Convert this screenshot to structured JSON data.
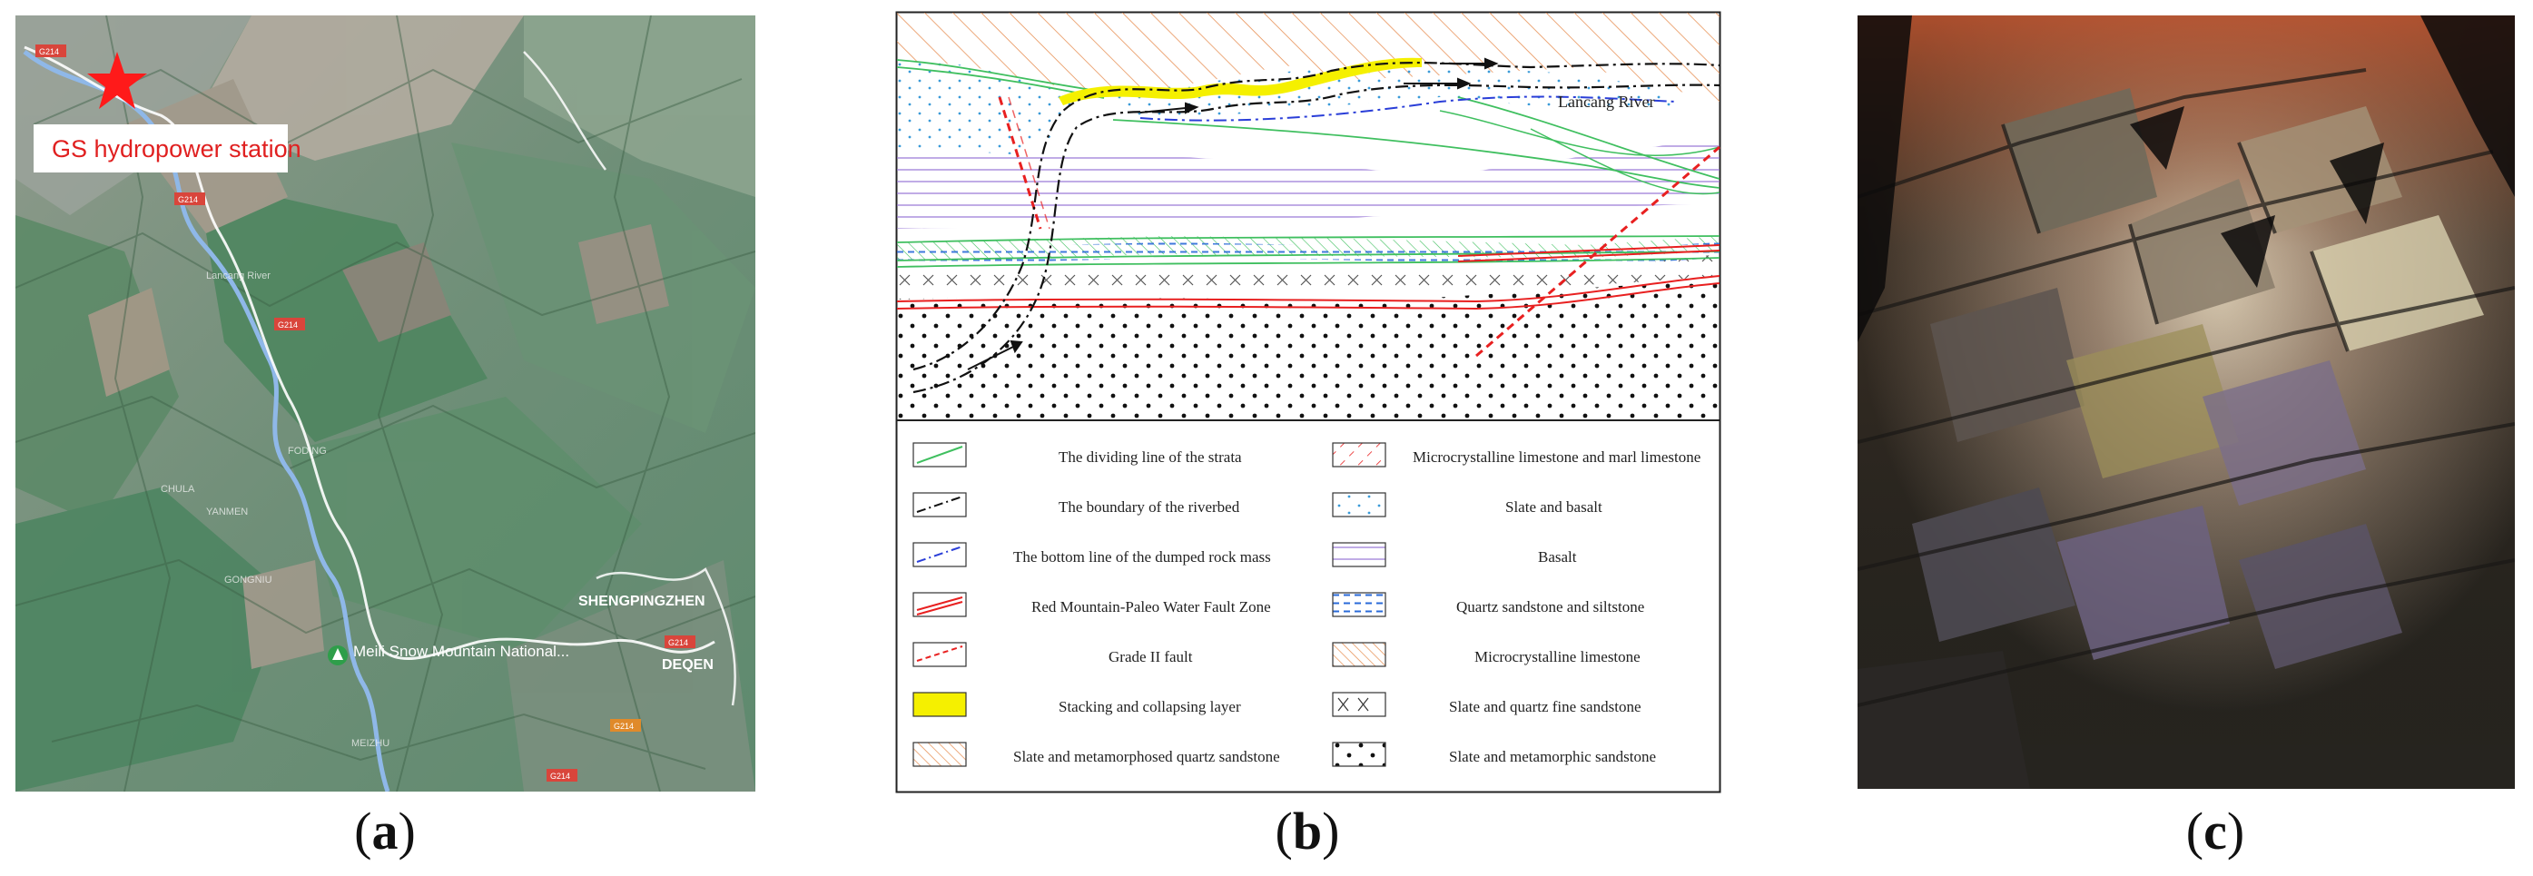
{
  "panel_a": {
    "station_label": "GS hydropower station",
    "caption_letter": "a",
    "roads": [
      "G214",
      "G214",
      "G214",
      "G214",
      "G214",
      "G214"
    ],
    "town_label": "SHENGPINGZHEN",
    "town_label_2": "DEQEN",
    "park_label": "Meili Snow Mountain National...",
    "map_texts": [
      "Lancang River",
      "FODING",
      "YANMEN",
      "CHULA",
      "GONGNIU",
      "MEIZHU"
    ]
  },
  "panel_b": {
    "river_label": "Lancang  River",
    "caption_letter": "b",
    "legend_left": [
      {
        "label": "The dividing  line of the strata",
        "swatch": "green-line"
      },
      {
        "label": "The boundary  of the riverbed",
        "swatch": "dashdot-black"
      },
      {
        "label": "The bottom line of the dumped rock mass",
        "swatch": "dashdot-blue"
      },
      {
        "label": "Red Mountain-Paleo Water Fault Zone",
        "swatch": "red-double"
      },
      {
        "label": "Grade II fault",
        "swatch": "red-dashed"
      },
      {
        "label": "Stacking and collapsing layer",
        "swatch": "yellow-fill"
      },
      {
        "label": "Slate and metamorphosed quartz sandstone",
        "swatch": "orange-hatch"
      }
    ],
    "legend_right": [
      {
        "label": "Microcrystalline limestone and marl limestone",
        "swatch": "red-dash-hatch"
      },
      {
        "label": "Slate and basalt",
        "swatch": "blue-dots"
      },
      {
        "label": "Basalt",
        "swatch": "purple-lines"
      },
      {
        "label": "Quartz sandstone and siltstone",
        "swatch": "blue-dashes"
      },
      {
        "label": "Microcrystalline limestone",
        "swatch": "orange-dense-hatch"
      },
      {
        "label": "Slate and quartz fine sandstone",
        "swatch": "cross-hatch"
      },
      {
        "label": "Slate and metamorphic sandstone",
        "swatch": "black-dots"
      }
    ],
    "colors": {
      "green": "#3fbf5f",
      "blue": "#2a3ed8",
      "red": "#e82020",
      "yellow": "#f5f000",
      "orange": "#e8935a",
      "purple": "#9a7ad8"
    }
  },
  "panel_c": {
    "caption_letter": "c"
  }
}
